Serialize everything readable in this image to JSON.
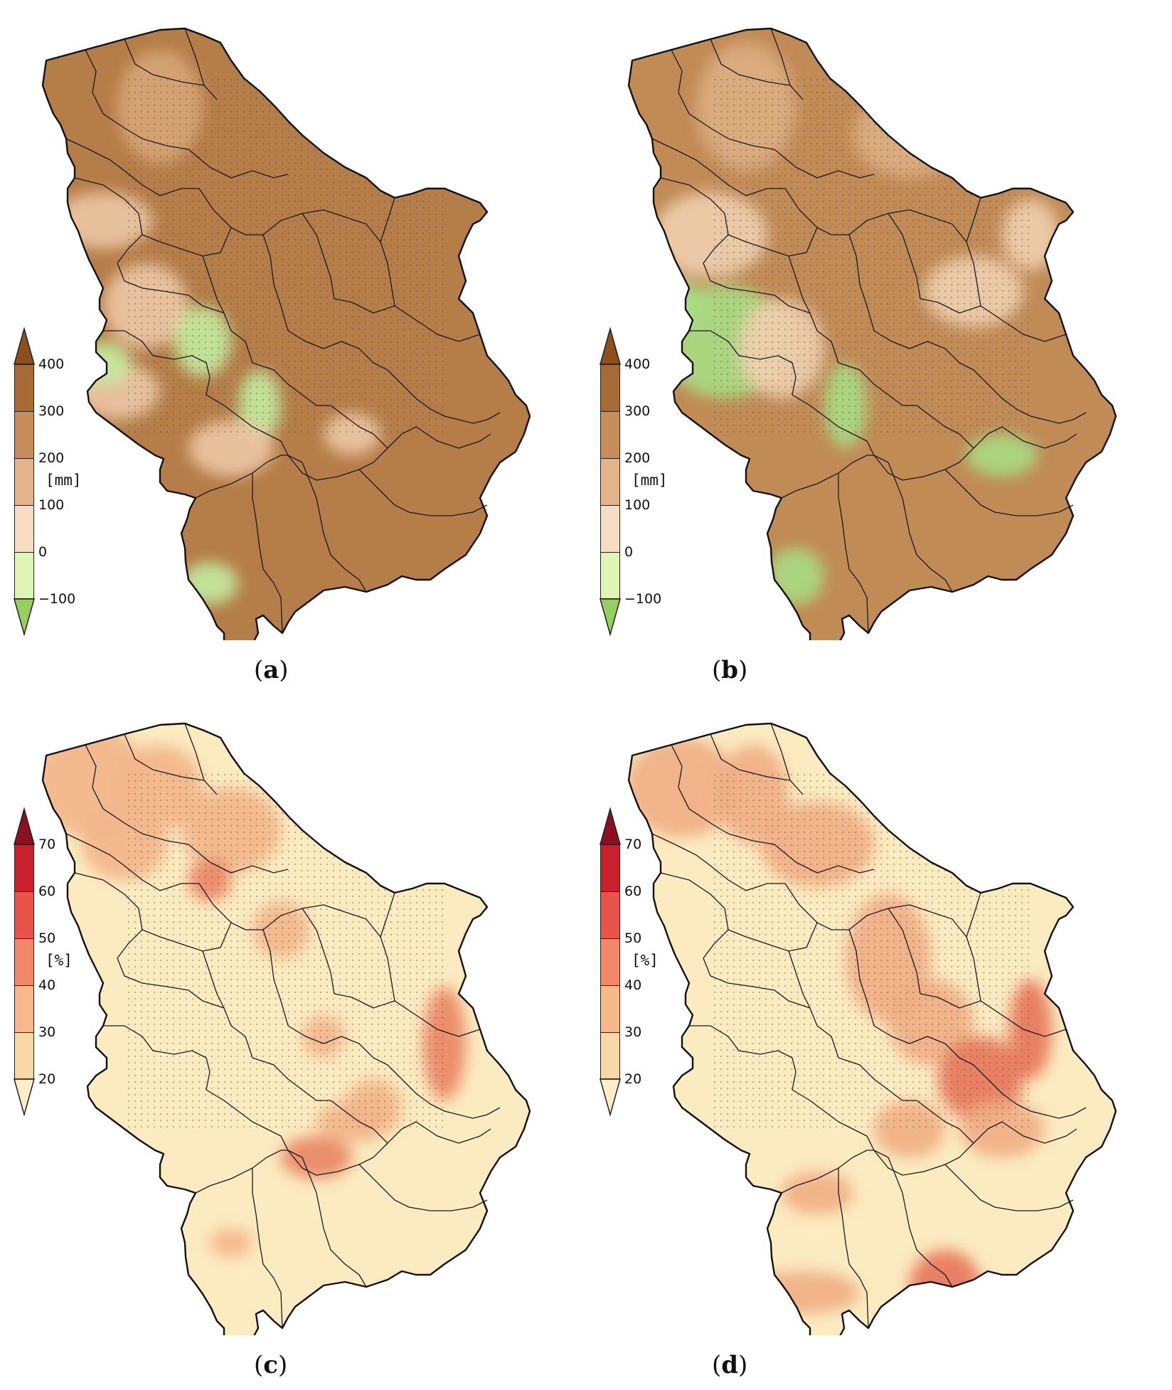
{
  "panels": [
    {
      "id": "a",
      "caption_letter": "a",
      "unit": "[mm]",
      "colorbar_ticks": [
        "400",
        "300",
        "200",
        "100",
        "0",
        "−100"
      ],
      "colorbar_colors": [
        "#8f4f1c",
        "#a86a35",
        "#c78e5c",
        "#e3b48a",
        "#f7dcc4",
        "#dff5b5",
        "#b9e28a",
        "#96cf5f"
      ],
      "fill_base": "#b57d48",
      "fill_mid": "#d7a677",
      "fill_low": "#ecc8a5",
      "fill_neg": "#c3eba0"
    },
    {
      "id": "b",
      "caption_letter": "b",
      "unit": "[mm]",
      "colorbar_ticks": [
        "400",
        "300",
        "200",
        "100",
        "0",
        "−100"
      ],
      "colorbar_colors": [
        "#8f4f1c",
        "#a86a35",
        "#c78e5c",
        "#e3b48a",
        "#f7dcc4",
        "#dff5b5",
        "#b9e28a",
        "#96cf5f"
      ],
      "fill_base": "#c18b56",
      "fill_mid": "#dcae82",
      "fill_low": "#efcfaf",
      "fill_neg": "#a9dc84"
    },
    {
      "id": "c",
      "caption_letter": "c",
      "unit": "[%]",
      "colorbar_ticks": [
        "70",
        "60",
        "50",
        "40",
        "30",
        "20"
      ],
      "colorbar_colors": [
        "#8c1020",
        "#c8202c",
        "#e9544a",
        "#f3876a",
        "#f7b98c",
        "#fad8a6",
        "#fdeec8"
      ],
      "fill_base": "#fcebc0",
      "fill_mid": "#f2b58a",
      "fill_low": "#e98462",
      "fill_neg": "#fcebc0"
    },
    {
      "id": "d",
      "caption_letter": "d",
      "unit": "[%]",
      "colorbar_ticks": [
        "70",
        "60",
        "50",
        "40",
        "30",
        "20"
      ],
      "colorbar_colors": [
        "#8c1020",
        "#c8202c",
        "#e9544a",
        "#f3876a",
        "#f7b98c",
        "#fad8a6",
        "#fdeec8"
      ],
      "fill_base": "#fcebc0",
      "fill_mid": "#f0ad84",
      "fill_low": "#e6765a",
      "fill_neg": "#fcebc0"
    }
  ]
}
